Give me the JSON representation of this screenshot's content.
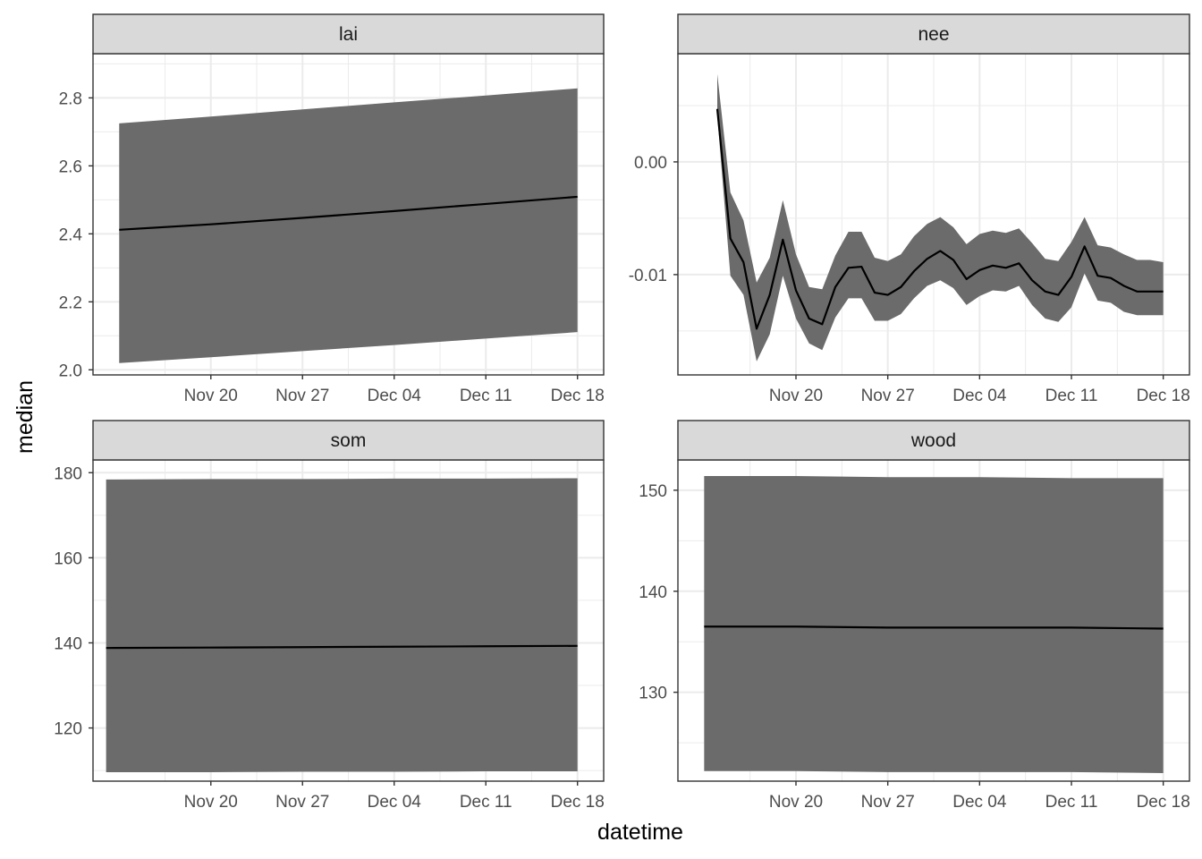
{
  "chart_data": {
    "type": "line",
    "xlabel": "datetime",
    "ylabel": "median",
    "x_tick_labels": [
      "Nov 20",
      "Nov 27",
      "Dec 04",
      "Dec 11",
      "Dec 18"
    ],
    "x_tick_dates": [
      "2023-11-20",
      "2023-11-27",
      "2023-12-04",
      "2023-12-11",
      "2023-12-18"
    ],
    "grid": true,
    "colors": {
      "ribbon": "#6b6b6b",
      "line": "#000000",
      "strip_fill": "#d9d9d9",
      "panel_border": "#333333",
      "grid": "#ebebeb"
    },
    "panels": [
      {
        "name": "lai",
        "xlim": [
          "2023-11-11",
          "2023-12-20"
        ],
        "ylim": [
          1.985,
          2.93
        ],
        "y_ticks": [
          2.0,
          2.2,
          2.4,
          2.6,
          2.8
        ],
        "y_tick_labels": [
          "2.0",
          "2.2",
          "2.4",
          "2.6",
          "2.8"
        ],
        "series": [
          {
            "x": [
              "2023-11-13",
              "2023-11-20",
              "2023-11-27",
              "2023-12-04",
              "2023-12-11",
              "2023-12-18"
            ],
            "median": [
              2.412,
              2.428,
              2.447,
              2.467,
              2.488,
              2.509
            ],
            "lower": [
              2.02,
              2.037,
              2.055,
              2.073,
              2.092,
              2.111
            ],
            "upper": [
              2.725,
              2.745,
              2.766,
              2.787,
              2.807,
              2.828
            ]
          }
        ]
      },
      {
        "name": "nee",
        "xlim": [
          "2023-11-11",
          "2023-12-20"
        ],
        "ylim": [
          -0.0189,
          0.0096
        ],
        "y_ticks": [
          0.0,
          -0.01
        ],
        "y_tick_labels": [
          "0.00",
          "-0.01"
        ],
        "series": [
          {
            "x": [
              "2023-11-14",
              "2023-11-15",
              "2023-11-16",
              "2023-11-17",
              "2023-11-18",
              "2023-11-19",
              "2023-11-20",
              "2023-11-21",
              "2023-11-22",
              "2023-11-23",
              "2023-11-24",
              "2023-11-25",
              "2023-11-26",
              "2023-11-27",
              "2023-11-28",
              "2023-11-29",
              "2023-11-30",
              "2023-12-01",
              "2023-12-02",
              "2023-12-03",
              "2023-12-04",
              "2023-12-05",
              "2023-12-06",
              "2023-12-07",
              "2023-12-08",
              "2023-12-09",
              "2023-12-10",
              "2023-12-11",
              "2023-12-12",
              "2023-12-13",
              "2023-12-14",
              "2023-12-15",
              "2023-12-16",
              "2023-12-17",
              "2023-12-18"
            ],
            "median": [
              0.0047,
              -0.0068,
              -0.0089,
              -0.0148,
              -0.0118,
              -0.0069,
              -0.0114,
              -0.0139,
              -0.0144,
              -0.0111,
              -0.0094,
              -0.0093,
              -0.0116,
              -0.0118,
              -0.0111,
              -0.0097,
              -0.0086,
              -0.0079,
              -0.0087,
              -0.0104,
              -0.0096,
              -0.0092,
              -0.0094,
              -0.009,
              -0.0105,
              -0.0115,
              -0.0118,
              -0.0102,
              -0.0075,
              -0.0101,
              -0.0103,
              -0.011,
              -0.0115,
              -0.0115,
              -0.0115
            ],
            "lower": [
              0.0041,
              -0.0101,
              -0.0118,
              -0.0177,
              -0.0153,
              -0.0101,
              -0.0139,
              -0.0161,
              -0.0167,
              -0.0138,
              -0.0121,
              -0.0121,
              -0.0141,
              -0.0141,
              -0.0135,
              -0.0121,
              -0.011,
              -0.0105,
              -0.0112,
              -0.0127,
              -0.0119,
              -0.0114,
              -0.0115,
              -0.011,
              -0.0127,
              -0.0139,
              -0.0142,
              -0.0129,
              -0.0099,
              -0.0123,
              -0.0125,
              -0.0133,
              -0.0136,
              -0.0136,
              -0.0136
            ],
            "upper": [
              0.0078,
              -0.0027,
              -0.0052,
              -0.0107,
              -0.0085,
              -0.0034,
              -0.0082,
              -0.0111,
              -0.0113,
              -0.0083,
              -0.0062,
              -0.0062,
              -0.0085,
              -0.0088,
              -0.0082,
              -0.0066,
              -0.0055,
              -0.0049,
              -0.0058,
              -0.0073,
              -0.0064,
              -0.0061,
              -0.0063,
              -0.0059,
              -0.0072,
              -0.0086,
              -0.0088,
              -0.0071,
              -0.0049,
              -0.0074,
              -0.0076,
              -0.0082,
              -0.0087,
              -0.0087,
              -0.0089
            ]
          }
        ]
      },
      {
        "name": "som",
        "xlim": [
          "2023-11-11",
          "2023-12-20"
        ],
        "ylim": [
          107.5,
          183
        ],
        "y_ticks": [
          120,
          140,
          160,
          180
        ],
        "y_tick_labels": [
          "120",
          "140",
          "160",
          "180"
        ],
        "series": [
          {
            "x": [
              "2023-11-12",
              "2023-11-20",
              "2023-11-27",
              "2023-12-04",
              "2023-12-11",
              "2023-12-18"
            ],
            "median": [
              138.8,
              138.9,
              139.0,
              139.1,
              139.2,
              139.3
            ],
            "lower": [
              109.6,
              109.6,
              109.7,
              109.7,
              109.8,
              109.8
            ],
            "upper": [
              178.4,
              178.5,
              178.5,
              178.6,
              178.6,
              178.7
            ]
          }
        ]
      },
      {
        "name": "wood",
        "xlim": [
          "2023-11-11",
          "2023-12-20"
        ],
        "ylim": [
          121.2,
          153
        ],
        "y_ticks": [
          130,
          140,
          150
        ],
        "y_tick_labels": [
          "130",
          "140",
          "150"
        ],
        "series": [
          {
            "x": [
              "2023-11-13",
              "2023-11-20",
              "2023-11-27",
              "2023-12-04",
              "2023-12-11",
              "2023-12-18"
            ],
            "median": [
              136.5,
              136.5,
              136.4,
              136.4,
              136.4,
              136.3
            ],
            "lower": [
              122.2,
              122.2,
              122.1,
              122.1,
              122.1,
              122.0
            ],
            "upper": [
              151.4,
              151.4,
              151.3,
              151.3,
              151.2,
              151.2
            ]
          }
        ]
      }
    ]
  }
}
